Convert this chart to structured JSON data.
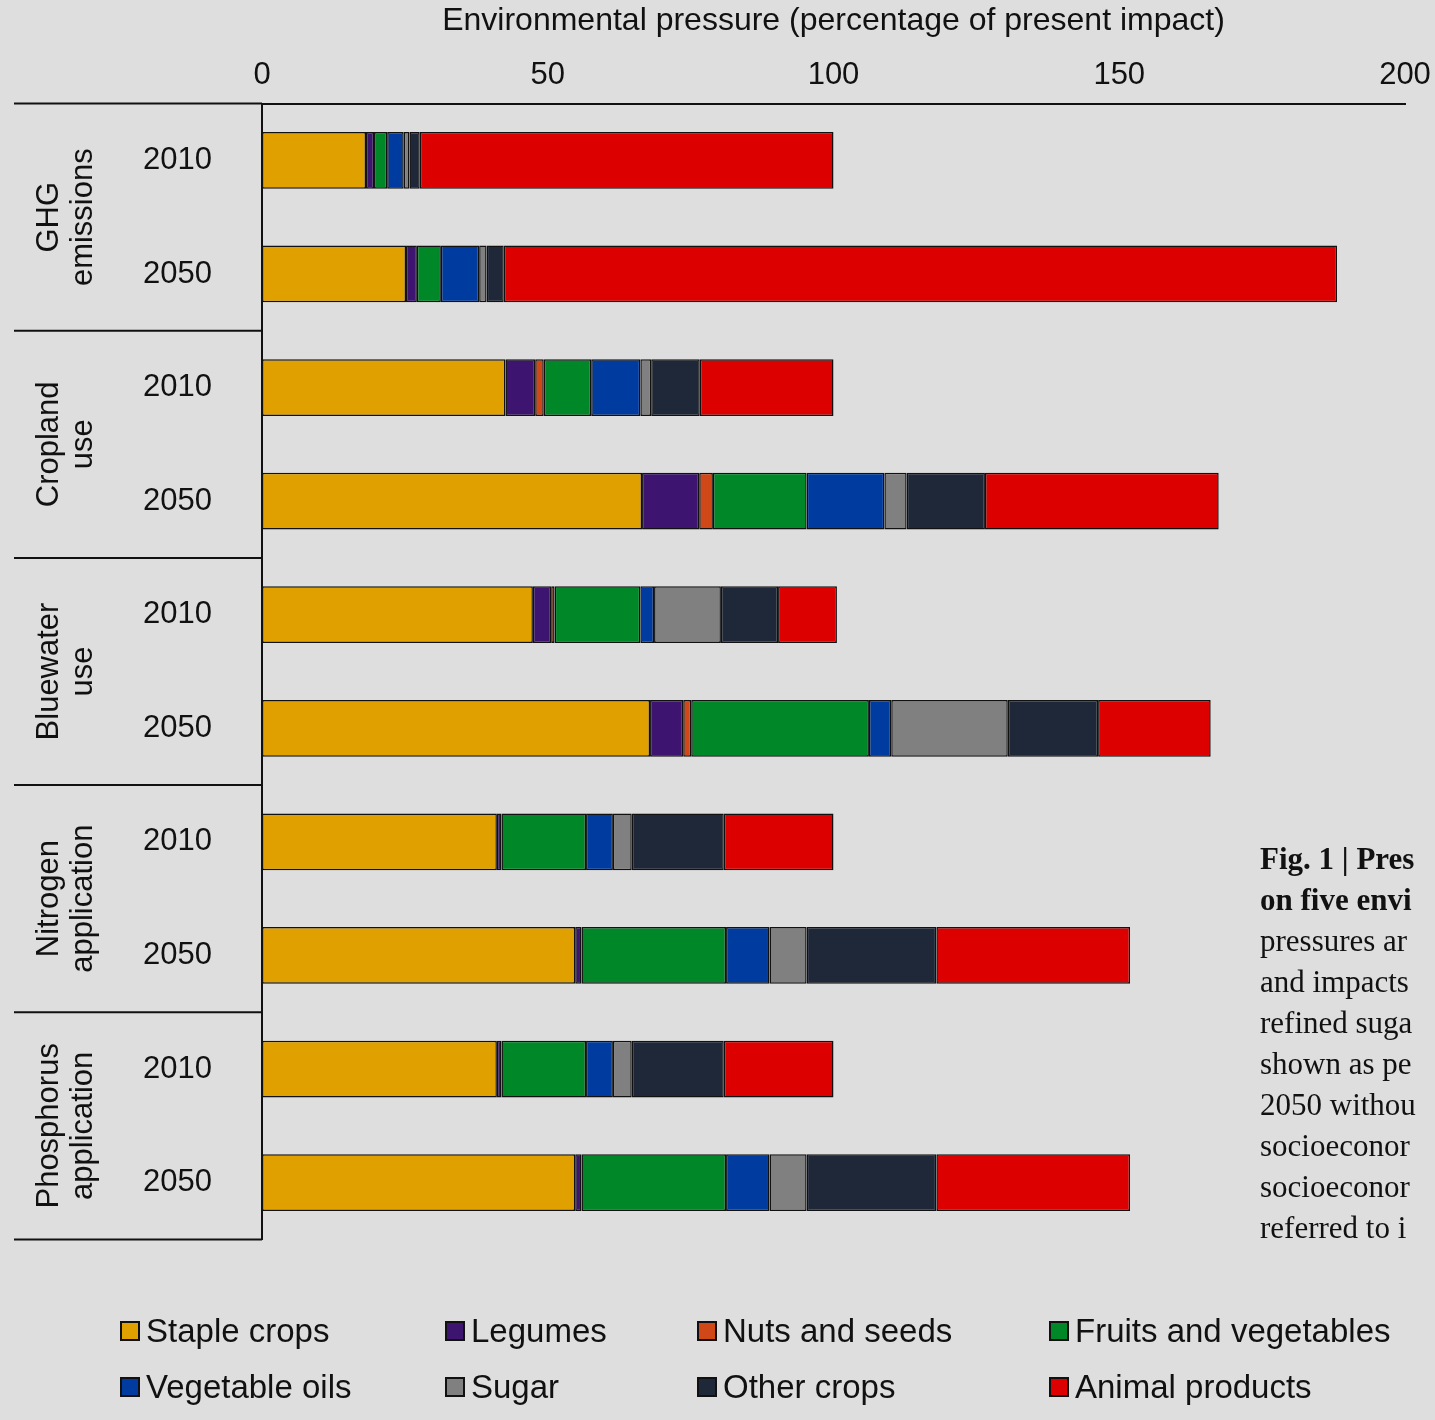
{
  "chart_data": {
    "type": "bar",
    "orientation": "horizontal",
    "stacked": true,
    "xlabel": "Environmental pressure (percentage of present impact)",
    "categories": [
      "2010",
      "2050",
      "2010",
      "2050",
      "2010",
      "2050",
      "2010",
      "2050",
      "2010",
      "2050"
    ],
    "xlim": [
      0,
      200
    ],
    "xticks": [
      0,
      50,
      100,
      150,
      200
    ],
    "grid": false,
    "legend": "bottom",
    "series": [
      {
        "name": "Staple crops",
        "color": "#e0a000",
        "values": [
          18.2,
          25.2,
          42.6,
          66.5,
          47.4,
          67.9,
          41.1,
          54.8,
          41.1,
          54.8
        ]
      },
      {
        "name": "Legumes",
        "color": "#3d1470",
        "values": [
          1.4,
          1.9,
          5.2,
          10.0,
          3.2,
          5.8,
          0.8,
          1.1,
          0.8,
          1.1
        ]
      },
      {
        "name": "Nuts and seeds",
        "color": "#d04818",
        "values": [
          0,
          0,
          1.5,
          2.4,
          0.6,
          1.4,
          0,
          0,
          0,
          0
        ]
      },
      {
        "name": "Fruits and vegetables",
        "color": "#008828",
        "values": [
          2.3,
          4.2,
          8.3,
          16.4,
          15.0,
          31.1,
          14.8,
          25.3,
          14.8,
          25.3
        ]
      },
      {
        "name": "Vegetable oils",
        "color": "#003ca0",
        "values": [
          2.9,
          6.7,
          8.6,
          13.6,
          2.4,
          3.9,
          4.7,
          7.6,
          4.7,
          7.6
        ]
      },
      {
        "name": "Sugar",
        "color": "#808080",
        "values": [
          1.0,
          1.3,
          1.9,
          3.9,
          11.7,
          20.4,
          3.3,
          6.5,
          3.3,
          6.5
        ]
      },
      {
        "name": "Other crops",
        "color": "#1e2838",
        "values": [
          1.8,
          3.0,
          8.5,
          13.7,
          10.0,
          15.8,
          16.1,
          22.7,
          16.1,
          22.7
        ]
      },
      {
        "name": "Animal products",
        "color": "#dd0000",
        "values": [
          72.4,
          145.8,
          23.4,
          40.9,
          10.3,
          19.7,
          19.2,
          33.9,
          19.2,
          33.9
        ]
      }
    ],
    "annotations": [
      "GHG emissions",
      "Cropland use",
      "Bluewater use",
      "Nitrogen application",
      "Phosphorus application",
      "Fig. 1 | Pres\non five envi",
      "pressures ar\nand impacts\nrefined suga\nshown as pe\n2050 withou\nsocioeconor\nsocioeconor\nreferred to i"
    ]
  }
}
